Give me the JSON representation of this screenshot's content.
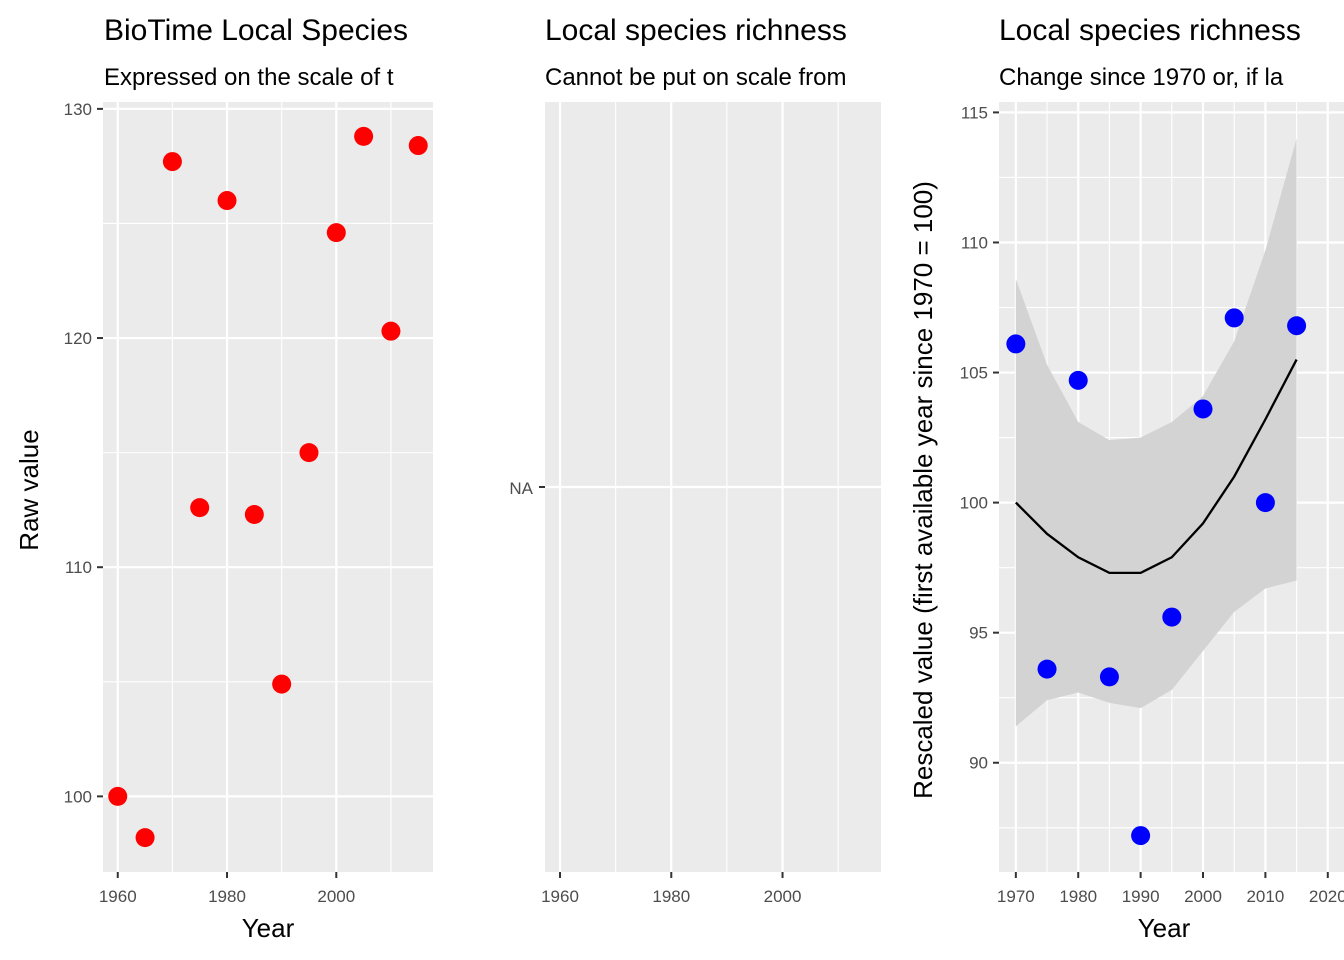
{
  "chart_data": [
    {
      "type": "scatter",
      "title": "BioTime Local Species",
      "subtitle": "Expressed on the scale of t",
      "xlabel": "Year",
      "ylabel": "Raw value",
      "xlim": [
        1957.3,
        2017.7
      ],
      "ylim": [
        96.7,
        130.3
      ],
      "x_ticks": [
        1960,
        1980,
        2000
      ],
      "y_ticks": [
        100,
        110,
        120,
        130
      ],
      "marker_color": "#ff0000",
      "series": [
        {
          "x": [
            1960,
            1965,
            1970,
            1975,
            1980,
            1985,
            1990,
            1995,
            2000,
            2005,
            2010,
            2015
          ],
          "y": [
            100.0,
            98.2,
            127.7,
            112.6,
            126.0,
            112.3,
            104.9,
            115.0,
            124.6,
            128.8,
            120.3,
            128.4
          ]
        }
      ]
    },
    {
      "type": "scatter",
      "title": "Local species richness",
      "subtitle": "Cannot be put on scale from",
      "xlabel": "",
      "ylabel": "",
      "xlim": [
        1957.3,
        2017.7
      ],
      "x_ticks": [
        1960,
        1980,
        2000
      ],
      "y_ticks": [
        "NA"
      ],
      "series": []
    },
    {
      "type": "scatter",
      "title": "Local species richness",
      "subtitle": "Change since 1970 or, if la",
      "xlabel": "Year",
      "ylabel": "Rescaled value (first available year since 1970 = 100)",
      "xlim": [
        1967.3,
        2022.6
      ],
      "ylim": [
        85.8,
        115.4
      ],
      "x_ticks": [
        1970,
        1980,
        1990,
        2000,
        2010,
        2020
      ],
      "y_ticks": [
        90,
        95,
        100,
        105,
        110,
        115
      ],
      "marker_color": "#0000ff",
      "series": [
        {
          "x": [
            1970,
            1975,
            1980,
            1985,
            1990,
            1995,
            2000,
            2005,
            2010,
            2015
          ],
          "y": [
            106.1,
            93.6,
            104.7,
            93.3,
            87.2,
            95.6,
            103.6,
            107.1,
            100.0,
            106.8
          ]
        }
      ],
      "smooth": {
        "x": [
          1970,
          1975,
          1980,
          1985,
          1990,
          1995,
          2000,
          2005,
          2010,
          2015
        ],
        "y": [
          100.0,
          98.8,
          97.9,
          97.3,
          97.3,
          97.9,
          99.2,
          101.0,
          103.2,
          105.5
        ],
        "lower": [
          91.4,
          92.4,
          92.7,
          92.3,
          92.1,
          92.8,
          94.3,
          95.8,
          96.7,
          97.0
        ],
        "upper": [
          108.6,
          105.3,
          103.1,
          102.4,
          102.5,
          103.1,
          104.1,
          106.2,
          109.7,
          114.0
        ],
        "line_color": "#000000",
        "band_color": "#d3d3d3"
      }
    }
  ]
}
